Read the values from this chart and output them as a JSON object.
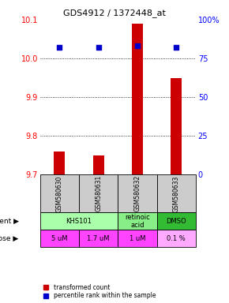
{
  "title": "GDS4912 / 1372448_at",
  "samples": [
    "GSM580630",
    "GSM580631",
    "GSM580632",
    "GSM580633"
  ],
  "transformed_counts": [
    9.76,
    9.75,
    10.09,
    9.95
  ],
  "percentile_ranks": [
    82,
    82,
    83,
    82
  ],
  "ylim_left": [
    9.7,
    10.1
  ],
  "ylim_right": [
    0,
    100
  ],
  "yticks_left": [
    9.7,
    9.8,
    9.9,
    10.0,
    10.1
  ],
  "yticks_right": [
    0,
    25,
    50,
    75,
    100
  ],
  "ytick_labels_right": [
    "0",
    "25",
    "50",
    "75",
    "100%"
  ],
  "bar_color": "#cc0000",
  "dot_color": "#0000cc",
  "agent_info": [
    [
      0,
      2,
      "KHS101",
      "#aaffaa"
    ],
    [
      2,
      3,
      "retinoic\nacid",
      "#88ee88"
    ],
    [
      3,
      4,
      "DMSO",
      "#33bb33"
    ]
  ],
  "dose_labels": [
    "5 uM",
    "1.7 uM",
    "1 uM",
    "0.1 %"
  ],
  "dose_colors": [
    "#ff44ff",
    "#ff44ff",
    "#ff44ff",
    "#ffaaff"
  ],
  "sample_box_color": "#cccccc",
  "legend_red": "transformed count",
  "legend_blue": "percentile rank within the sample"
}
